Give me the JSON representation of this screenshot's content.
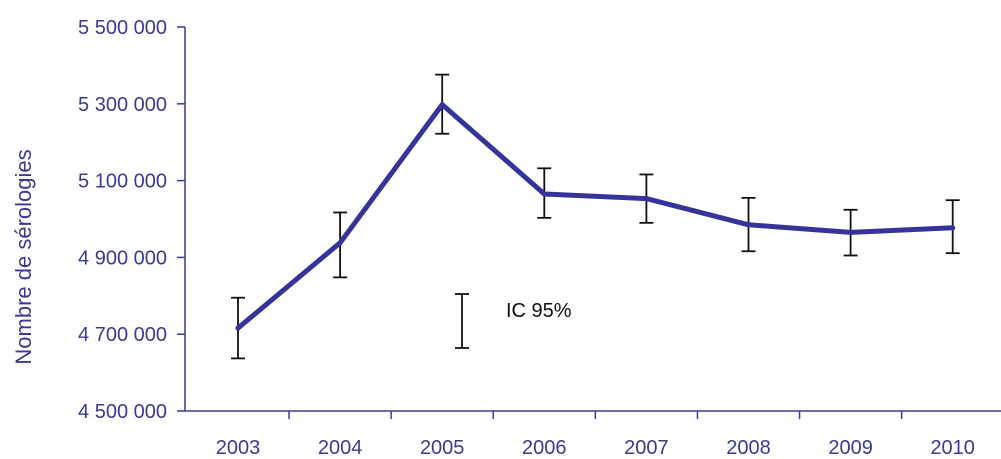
{
  "chart_data": {
    "type": "line",
    "title": "",
    "xlabel": "",
    "ylabel": "Nombre de sérologies",
    "categories": [
      "2003",
      "2004",
      "2005",
      "2006",
      "2007",
      "2008",
      "2009",
      "2010"
    ],
    "series": [
      {
        "values": [
          4716000,
          4938000,
          5298000,
          5065000,
          5053000,
          4985000,
          4965000,
          4977000
        ],
        "ci_low": [
          4637000,
          4848000,
          5222000,
          5003000,
          4990000,
          4916000,
          4905000,
          4911000
        ],
        "ci_high": [
          4795000,
          5017000,
          5376000,
          5132000,
          5116000,
          5055000,
          5024000,
          5049000
        ]
      }
    ],
    "ylim": [
      4500000,
      5500000
    ],
    "yticks": [
      4500000,
      4700000,
      4900000,
      5100000,
      5300000,
      5500000
    ],
    "ytick_labels": [
      "4 500 000",
      "4 700 000",
      "4 900 000",
      "5 100 000",
      "5 300 000",
      "5 500 000"
    ],
    "legend": {
      "label": "IC 95%",
      "position": "center"
    },
    "grid": false,
    "colors": {
      "line": "#34349a",
      "axis": "#3a3a96",
      "error_bar": "#111111"
    }
  }
}
